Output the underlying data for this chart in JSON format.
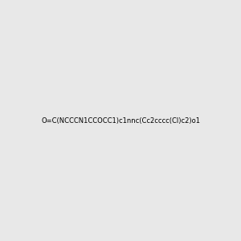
{
  "smiles": "O=C(NCCCN1CCOCC1)c1nnc(Cc2cccc(Cl)c2)o1",
  "image_size": 300,
  "background_color": "#e8e8e8",
  "title": ""
}
